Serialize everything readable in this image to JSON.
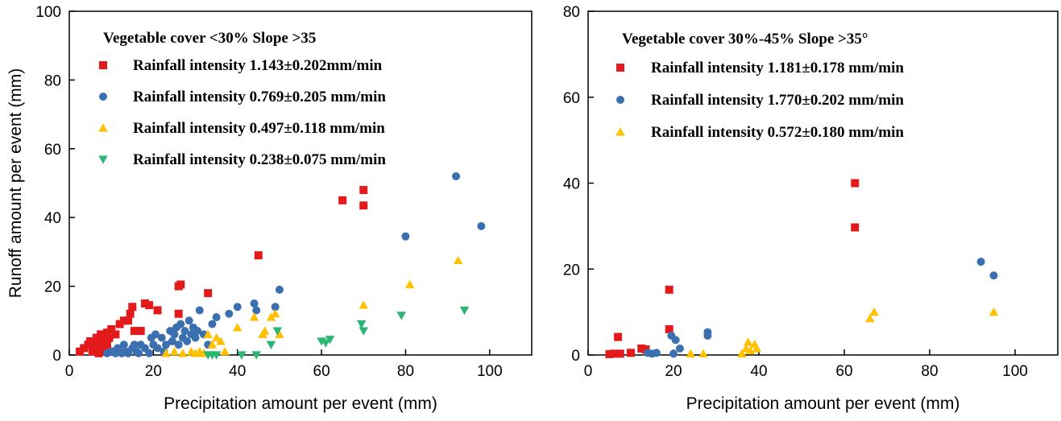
{
  "chart_data": [
    {
      "type": "scatter",
      "xlabel": "Precipitation amount per event (mm)",
      "ylabel": "Runoff amount per event (mm)",
      "xlim": [
        0,
        110
      ],
      "ylim": [
        0,
        100
      ],
      "xticks": [
        0,
        20,
        40,
        60,
        80,
        100
      ],
      "yticks": [
        0,
        20,
        40,
        60,
        80,
        100
      ],
      "legend_title": "Vegetable cover <30%   Slope >35",
      "legend_position": "top-left",
      "series": [
        {
          "name": "Rainfall intensity 1.143±0.202mm/min",
          "marker": "square",
          "color": "#e31a1c",
          "points": [
            [
              2.5,
              1.0
            ],
            [
              3.5,
              2.0
            ],
            [
              4.5,
              3.0
            ],
            [
              5,
              4
            ],
            [
              5.5,
              1
            ],
            [
              6,
              2
            ],
            [
              6,
              3
            ],
            [
              6.5,
              5
            ],
            [
              7,
              0.5
            ],
            [
              7,
              2
            ],
            [
              7,
              4
            ],
            [
              7.5,
              3
            ],
            [
              7.5,
              6
            ],
            [
              8,
              1
            ],
            [
              8,
              5
            ],
            [
              8.5,
              2
            ],
            [
              8.5,
              4
            ],
            [
              9,
              3
            ],
            [
              9,
              6.5
            ],
            [
              9.5,
              5
            ],
            [
              10,
              7.5
            ],
            [
              10.5,
              1
            ],
            [
              11,
              6
            ],
            [
              12,
              9
            ],
            [
              13,
              10
            ],
            [
              14,
              10
            ],
            [
              14.5,
              12
            ],
            [
              15,
              14
            ],
            [
              15.5,
              7
            ],
            [
              17,
              7
            ],
            [
              18,
              15
            ],
            [
              19,
              14.5
            ],
            [
              21,
              13
            ],
            [
              26,
              20
            ],
            [
              26.5,
              20.5
            ],
            [
              26,
              12
            ],
            [
              33,
              18
            ],
            [
              45,
              29
            ],
            [
              65,
              45
            ],
            [
              70,
              48
            ],
            [
              70,
              43.5
            ]
          ]
        },
        {
          "name": "Rainfall intensity 0.769±0.205 mm/min",
          "marker": "circle",
          "color": "#3a6fb0",
          "points": [
            [
              9,
              0.5
            ],
            [
              10,
              1
            ],
            [
              11,
              0.5
            ],
            [
              11.5,
              2
            ],
            [
              12,
              1
            ],
            [
              12.5,
              0.5
            ],
            [
              13,
              3
            ],
            [
              13.5,
              1
            ],
            [
              14,
              0.5
            ],
            [
              15,
              2
            ],
            [
              15.5,
              3
            ],
            [
              16,
              1
            ],
            [
              16.5,
              0.5
            ],
            [
              17,
              3
            ],
            [
              18,
              2
            ],
            [
              19,
              0.5
            ],
            [
              19.5,
              5
            ],
            [
              20,
              3
            ],
            [
              20.5,
              6
            ],
            [
              21,
              2
            ],
            [
              22,
              5
            ],
            [
              22.5,
              1
            ],
            [
              23,
              3
            ],
            [
              24,
              7
            ],
            [
              24.5,
              4
            ],
            [
              25,
              6
            ],
            [
              25.5,
              8
            ],
            [
              26,
              3
            ],
            [
              26.5,
              9
            ],
            [
              27,
              5
            ],
            [
              27.5,
              7
            ],
            [
              28,
              4
            ],
            [
              28.5,
              10
            ],
            [
              29,
              6
            ],
            [
              29.5,
              8
            ],
            [
              30,
              5
            ],
            [
              30.5,
              7
            ],
            [
              31,
              13
            ],
            [
              32,
              6
            ],
            [
              33,
              3
            ],
            [
              34,
              9
            ],
            [
              35,
              11
            ],
            [
              38,
              12
            ],
            [
              40,
              14
            ],
            [
              44,
              15
            ],
            [
              44.5,
              13
            ],
            [
              49,
              14
            ],
            [
              50,
              19
            ],
            [
              80,
              34.5
            ],
            [
              92,
              52
            ],
            [
              98,
              37.5
            ]
          ]
        },
        {
          "name": "Rainfall intensity 0.497±0.118 mm/min",
          "marker": "triangle-up",
          "color": "#ffc000",
          "points": [
            [
              23,
              0.5
            ],
            [
              25,
              1
            ],
            [
              27,
              0.5
            ],
            [
              29,
              1
            ],
            [
              30,
              0.5
            ],
            [
              31,
              1
            ],
            [
              32,
              0.5
            ],
            [
              33,
              6
            ],
            [
              34,
              3
            ],
            [
              35,
              5
            ],
            [
              36,
              4
            ],
            [
              37,
              1
            ],
            [
              40,
              8
            ],
            [
              44,
              11
            ],
            [
              46,
              6
            ],
            [
              46.5,
              7
            ],
            [
              48,
              11
            ],
            [
              49,
              12
            ],
            [
              50,
              6
            ],
            [
              70,
              14.5
            ],
            [
              81,
              20.5
            ],
            [
              92.5,
              27.5
            ]
          ]
        },
        {
          "name": "Rainfall intensity 0.238±0.075 mm/min",
          "marker": "triangle-down",
          "color": "#2bb673",
          "points": [
            [
              33,
              0
            ],
            [
              34,
              0
            ],
            [
              35,
              0
            ],
            [
              41,
              0
            ],
            [
              44.5,
              0
            ],
            [
              48,
              3
            ],
            [
              49.5,
              7
            ],
            [
              60,
              4
            ],
            [
              61,
              3.5
            ],
            [
              62,
              4.5
            ],
            [
              69.5,
              9
            ],
            [
              70,
              7
            ],
            [
              79,
              11.5
            ],
            [
              94,
              13
            ]
          ]
        }
      ]
    },
    {
      "type": "scatter",
      "xlabel": "Precipitation amount per event (mm)",
      "ylabel": "",
      "xlim": [
        0,
        110
      ],
      "ylim": [
        0,
        80
      ],
      "xticks": [
        0,
        20,
        40,
        60,
        80,
        100
      ],
      "yticks": [
        0,
        20,
        40,
        60,
        80
      ],
      "legend_title": "Vegetable cover 30%-45%   Slope >35°",
      "legend_position": "top-left",
      "series": [
        {
          "name": "Rainfall intensity 1.181±0.178 mm/min",
          "marker": "square",
          "color": "#e31a1c",
          "points": [
            [
              5,
              0.2
            ],
            [
              6,
              0.3
            ],
            [
              7,
              4.2
            ],
            [
              7.5,
              0.3
            ],
            [
              10,
              0.5
            ],
            [
              12.5,
              1.5
            ],
            [
              13.5,
              1.3
            ],
            [
              19,
              15.2
            ],
            [
              19,
              6
            ],
            [
              62.5,
              40
            ],
            [
              62.5,
              29.7
            ]
          ]
        },
        {
          "name": "Rainfall intensity 1.770±0.202 mm/min",
          "marker": "circle",
          "color": "#3a6fb0",
          "points": [
            [
              14,
              0.5
            ],
            [
              15,
              0.3
            ],
            [
              16,
              0.5
            ],
            [
              19.5,
              4.5
            ],
            [
              20.5,
              3.5
            ],
            [
              20,
              0.3
            ],
            [
              21.5,
              1.5
            ],
            [
              28,
              4.5
            ],
            [
              28,
              5.3
            ],
            [
              92,
              21.7
            ],
            [
              95,
              18.5
            ]
          ]
        },
        {
          "name": "Rainfall intensity 0.572±0.180 mm/min",
          "marker": "triangle-up",
          "color": "#ffc000",
          "points": [
            [
              24,
              0.3
            ],
            [
              27,
              0.3
            ],
            [
              36,
              0.3
            ],
            [
              37,
              1.5
            ],
            [
              37.5,
              3
            ],
            [
              38,
              1
            ],
            [
              39,
              2.5
            ],
            [
              39.5,
              1.5
            ],
            [
              66,
              8.5
            ],
            [
              67,
              10
            ],
            [
              95,
              10
            ]
          ]
        }
      ]
    }
  ]
}
